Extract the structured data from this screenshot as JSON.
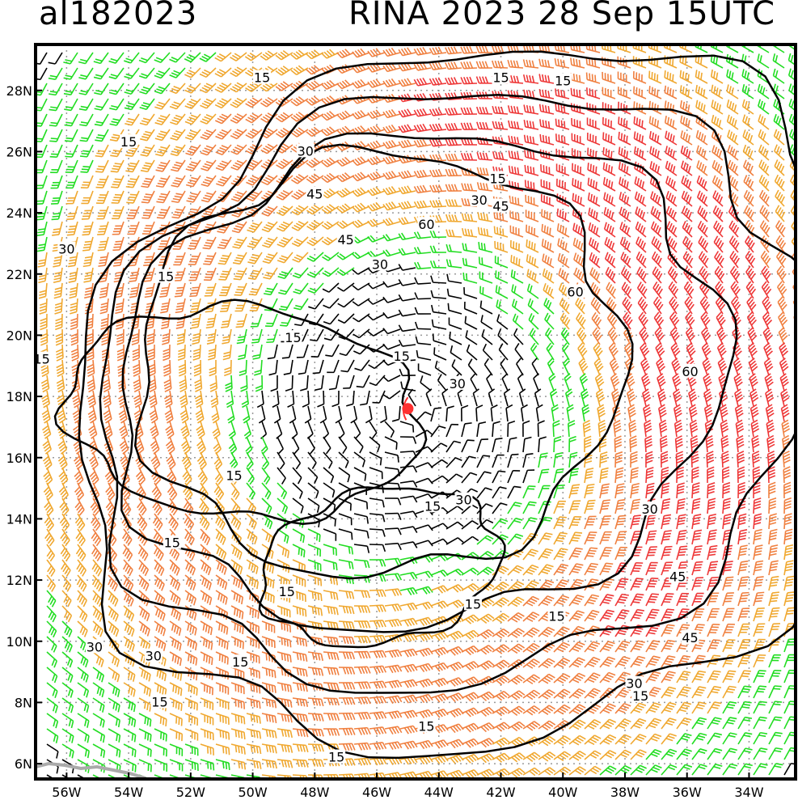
{
  "header": {
    "storm_id": "al182023",
    "storm_time": "RINA 2023 28 Sep 15UTC"
  },
  "map": {
    "lon_range": [
      -57.0,
      -32.5
    ],
    "lat_range": [
      5.5,
      29.5
    ],
    "lon_ticks": [
      {
        "value": -56,
        "label": "56W"
      },
      {
        "value": -54,
        "label": "54W"
      },
      {
        "value": -52,
        "label": "52W"
      },
      {
        "value": -50,
        "label": "50W"
      },
      {
        "value": -48,
        "label": "48W"
      },
      {
        "value": -46,
        "label": "46W"
      },
      {
        "value": -44,
        "label": "44W"
      },
      {
        "value": -42,
        "label": "42W"
      },
      {
        "value": -40,
        "label": "40W"
      },
      {
        "value": -38,
        "label": "38W"
      },
      {
        "value": -36,
        "label": "36W"
      },
      {
        "value": -34,
        "label": "34W"
      }
    ],
    "lat_ticks": [
      {
        "value": 28,
        "label": "28N"
      },
      {
        "value": 26,
        "label": "26N"
      },
      {
        "value": 24,
        "label": "24N"
      },
      {
        "value": 22,
        "label": "22N"
      },
      {
        "value": 20,
        "label": "20N"
      },
      {
        "value": 18,
        "label": "18N"
      },
      {
        "value": 16,
        "label": "16N"
      },
      {
        "value": 14,
        "label": "14N"
      },
      {
        "value": 12,
        "label": "12N"
      },
      {
        "value": 10,
        "label": "10N"
      },
      {
        "value": 8,
        "label": "8N"
      },
      {
        "value": 6,
        "label": "6N"
      }
    ],
    "gridlines": "dotted",
    "storm_center": {
      "lon": -45.0,
      "lat": 17.6,
      "color": "#ff3030"
    },
    "colors": {
      "calm": "#000000",
      "band_15_30": "#22dd22",
      "band_30_45": "#f0a830",
      "band_45_60": "#f08040",
      "band_60_plus": "#ee3838",
      "contour": "#000000",
      "coast": "#aaaaaa"
    },
    "contour_labels": [
      {
        "text": "15",
        "lon": -49.7,
        "lat": 28.4
      },
      {
        "text": "15",
        "lon": -42.0,
        "lat": 28.4
      },
      {
        "text": "15",
        "lon": -40.0,
        "lat": 28.3
      },
      {
        "text": "15",
        "lon": -54.0,
        "lat": 26.3
      },
      {
        "text": "30",
        "lon": -48.3,
        "lat": 26.0
      },
      {
        "text": "45",
        "lon": -48.0,
        "lat": 24.6
      },
      {
        "text": "15",
        "lon": -42.1,
        "lat": 25.1
      },
      {
        "text": "30",
        "lon": -42.7,
        "lat": 24.4
      },
      {
        "text": "45",
        "lon": -42.0,
        "lat": 24.2
      },
      {
        "text": "60",
        "lon": -44.4,
        "lat": 23.6
      },
      {
        "text": "45",
        "lon": -47.0,
        "lat": 23.1
      },
      {
        "text": "30",
        "lon": -56.0,
        "lat": 22.8
      },
      {
        "text": "30",
        "lon": -45.9,
        "lat": 22.3
      },
      {
        "text": "15",
        "lon": -52.8,
        "lat": 21.9
      },
      {
        "text": "60",
        "lon": -39.6,
        "lat": 21.4
      },
      {
        "text": "15",
        "lon": -56.8,
        "lat": 19.2
      },
      {
        "text": "15",
        "lon": -48.7,
        "lat": 19.9
      },
      {
        "text": "15",
        "lon": -45.2,
        "lat": 19.3
      },
      {
        "text": "30",
        "lon": -43.4,
        "lat": 18.4
      },
      {
        "text": "60",
        "lon": -35.9,
        "lat": 18.8
      },
      {
        "text": "15",
        "lon": -50.6,
        "lat": 15.4
      },
      {
        "text": "15",
        "lon": -44.2,
        "lat": 14.4
      },
      {
        "text": "30",
        "lon": -43.2,
        "lat": 14.6
      },
      {
        "text": "30",
        "lon": -37.2,
        "lat": 14.3
      },
      {
        "text": "15",
        "lon": -52.6,
        "lat": 13.2
      },
      {
        "text": "15",
        "lon": -48.9,
        "lat": 11.6
      },
      {
        "text": "45",
        "lon": -36.3,
        "lat": 12.1
      },
      {
        "text": "15",
        "lon": -42.9,
        "lat": 11.2
      },
      {
        "text": "15",
        "lon": -40.2,
        "lat": 10.8
      },
      {
        "text": "45",
        "lon": -35.9,
        "lat": 10.1
      },
      {
        "text": "30",
        "lon": -55.1,
        "lat": 9.8
      },
      {
        "text": "30",
        "lon": -53.2,
        "lat": 9.5
      },
      {
        "text": "15",
        "lon": -50.4,
        "lat": 9.3
      },
      {
        "text": "30",
        "lon": -37.7,
        "lat": 8.6
      },
      {
        "text": "15",
        "lon": -37.5,
        "lat": 8.2
      },
      {
        "text": "15",
        "lon": -53.0,
        "lat": 8.0
      },
      {
        "text": "15",
        "lon": -44.4,
        "lat": 7.2
      },
      {
        "text": "15",
        "lon": -47.3,
        "lat": 6.2
      }
    ]
  }
}
